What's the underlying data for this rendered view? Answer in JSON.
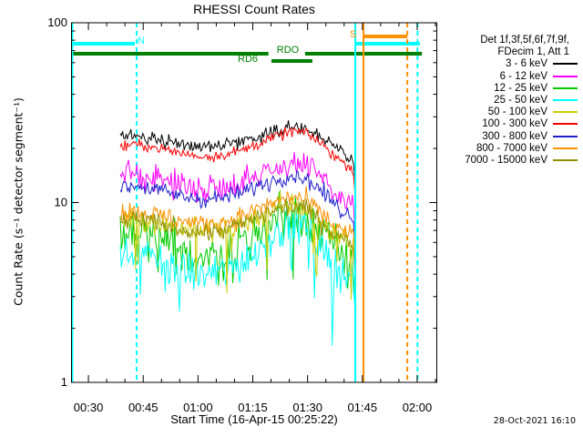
{
  "window": {
    "timestamp": "28-Oct-2021 16:10"
  },
  "chart_data": {
    "type": "line",
    "title": "RHESSI Count Rates",
    "xlabel": "Start Time (16-Apr-15 00:25:22)",
    "ylabel": "Count Rate (s⁻¹ detector segment⁻¹)",
    "y_log": true,
    "y_range": [
      1,
      100
    ],
    "y_major_ticks": [
      "1",
      "10",
      "100"
    ],
    "x_range_minutes": [
      25.37,
      125.37
    ],
    "x_minor_step_minutes": 5,
    "x_major_ticks": [
      {
        "minute": 30,
        "label": "00:30"
      },
      {
        "minute": 45,
        "label": "00:45"
      },
      {
        "minute": 60,
        "label": "01:00"
      },
      {
        "minute": 75,
        "label": "01:15"
      },
      {
        "minute": 90,
        "label": "01:30"
      },
      {
        "minute": 105,
        "label": "01:45"
      },
      {
        "minute": 120,
        "label": "02:00"
      }
    ],
    "series": [
      {
        "name": "3 - 6 keV",
        "color": "#000000",
        "noise_dex": 0.035,
        "spiky": false,
        "t": [
          38.7,
          43,
          47,
          52,
          57,
          62,
          67,
          72,
          77,
          82,
          86,
          89,
          93,
          97,
          100,
          102.5,
          103.3
        ],
        "v": [
          23,
          23.5,
          23,
          22,
          21,
          20.5,
          21,
          22,
          23.5,
          25.5,
          26.5,
          26,
          23.5,
          20.5,
          18.5,
          17.5,
          9
        ]
      },
      {
        "name": "6 - 12 keV",
        "color": "#FF00FF",
        "noise_dex": 0.075,
        "spiky": false,
        "t": [
          38.7,
          43,
          47,
          52,
          57,
          62,
          67,
          72,
          77,
          82,
          86,
          89,
          93,
          97,
          100,
          102.5,
          103.3
        ],
        "v": [
          14,
          14.5,
          14,
          13,
          12.3,
          12,
          12.3,
          13.2,
          14.5,
          15.8,
          16.5,
          16,
          14,
          11.5,
          10.3,
          10,
          5
        ]
      },
      {
        "name": "12 - 25 keV",
        "color": "#00CC00",
        "noise_dex": 0.14,
        "spiky": true,
        "t": [
          38.7,
          43,
          47,
          52,
          57,
          62,
          67,
          72,
          77,
          82,
          86,
          89,
          93,
          97,
          100,
          102.5,
          103.3
        ],
        "v": [
          6.3,
          6.5,
          6.2,
          5.6,
          5.2,
          5,
          5.2,
          5.9,
          7,
          8.2,
          8.8,
          8.5,
          7,
          5.6,
          5.1,
          4.9,
          2.6
        ]
      },
      {
        "name": "25 - 50 keV",
        "color": "#00FFFF",
        "noise_dex": 0.11,
        "spiky": true,
        "t": [
          38.7,
          43,
          47,
          52,
          57,
          62,
          67,
          72,
          77,
          82,
          86,
          89,
          93,
          97,
          100,
          102.5,
          103.3
        ],
        "v": [
          5,
          5.2,
          5,
          4.5,
          4.1,
          3.9,
          4.1,
          4.7,
          5.7,
          7,
          7.6,
          7.3,
          5.9,
          4.5,
          4.1,
          3.9,
          2.1
        ]
      },
      {
        "name": "50 - 100 keV",
        "color": "#CCCC00",
        "noise_dex": 0.07,
        "spiky": true,
        "t": [
          38.7,
          43,
          47,
          52,
          57,
          62,
          67,
          72,
          77,
          82,
          86,
          89,
          93,
          97,
          100,
          102.5,
          103.3
        ],
        "v": [
          8,
          8.3,
          8,
          7.5,
          7.1,
          6.9,
          7.1,
          7.7,
          8.5,
          9.3,
          9.7,
          9.4,
          8.2,
          6.8,
          6.3,
          6.1,
          3.2
        ]
      },
      {
        "name": "100 - 300 keV",
        "color": "#FF0000",
        "noise_dex": 0.03,
        "spiky": false,
        "t": [
          38.7,
          43,
          47,
          52,
          57,
          62,
          67,
          72,
          77,
          82,
          86,
          89,
          93,
          97,
          100,
          102.5,
          103.3
        ],
        "v": [
          20.5,
          21,
          20.5,
          19.5,
          18.5,
          18,
          18.5,
          19.5,
          21.5,
          23.5,
          25,
          24.5,
          22,
          18.5,
          16.5,
          15.5,
          8
        ]
      },
      {
        "name": "300 - 800 keV",
        "color": "#2020CC",
        "noise_dex": 0.045,
        "spiky": false,
        "t": [
          38.7,
          43,
          47,
          52,
          57,
          62,
          67,
          72,
          77,
          82,
          86,
          89,
          93,
          97,
          100,
          102.5,
          103.3
        ],
        "v": [
          12,
          12.5,
          12,
          11.3,
          10.7,
          10.4,
          10.7,
          11.4,
          12.5,
          13.6,
          14.2,
          13.8,
          12,
          10,
          8.8,
          8.4,
          4.5
        ]
      },
      {
        "name": "800 - 7000 keV",
        "color": "#FF9000",
        "noise_dex": 0.055,
        "spiky": false,
        "t": [
          38.7,
          43,
          47,
          52,
          57,
          62,
          67,
          72,
          77,
          82,
          86,
          89,
          93,
          97,
          100,
          102.5,
          103.3
        ],
        "v": [
          8.7,
          9,
          8.7,
          8.2,
          7.8,
          7.6,
          7.8,
          8.4,
          9.3,
          10.2,
          10.7,
          10.4,
          9,
          7.5,
          6.9,
          6.6,
          3.5
        ]
      },
      {
        "name": "7000 - 15000 keV",
        "color": "#8F8F00",
        "noise_dex": 0.05,
        "spiky": false,
        "t": [
          38.7,
          43,
          47,
          52,
          57,
          62,
          67,
          72,
          77,
          82,
          86,
          89,
          93,
          97,
          100,
          102.5,
          103.3
        ],
        "v": [
          7.8,
          8.1,
          7.8,
          7.4,
          7,
          6.8,
          7,
          7.6,
          8.4,
          9.2,
          9.6,
          9.4,
          8.1,
          6.8,
          6.2,
          5.9,
          3.1
        ]
      }
    ]
  },
  "legend": {
    "header_line1": "Det 1f,3f,5f,6f,7f,9f,",
    "header_line2": "FDecim 1, Att 1",
    "items": [
      {
        "label": "3 - 6 keV",
        "color": "#000000"
      },
      {
        "label": "6 - 12 keV",
        "color": "#FF00FF"
      },
      {
        "label": "12 - 25 keV",
        "color": "#00CC00"
      },
      {
        "label": "25 - 50 keV",
        "color": "#00FFFF"
      },
      {
        "label": "50 - 100 keV",
        "color": "#CCCC00"
      },
      {
        "label": "100 - 300 keV",
        "color": "#FF0000"
      },
      {
        "label": "300 - 800 keV",
        "color": "#2020CC"
      },
      {
        "label": "800 - 7000 keV",
        "color": "#FF9000"
      },
      {
        "label": "7000 - 15000 keV",
        "color": "#8F8F00"
      }
    ]
  },
  "flags": {
    "night": {
      "label": "N",
      "color": "#00FFFF",
      "bars_minutes": [
        [
          25.37,
          42.7
        ],
        [
          103.05,
          120.75
        ]
      ],
      "solid_lines_minutes": [
        25.6,
        103.05
      ],
      "dashed_lines_minutes": [
        43.2,
        120.1
      ]
    },
    "saa": {
      "label": "S",
      "color": "#FF9000",
      "bars_minutes": [
        [
          105.3,
          117.3
        ]
      ],
      "solid_lines_minutes": [
        105.3
      ],
      "dashed_lines_minutes": [
        117.3
      ]
    },
    "decim": {
      "color": "#008000",
      "rdo_label": "RDO",
      "rdo_segments_minutes": [
        [
          25.37,
          79.3
        ],
        [
          89.3,
          121.3
        ]
      ],
      "rd6_label": "RD6",
      "rd6_segments_minutes": [
        [
          80.1,
          91.3
        ]
      ]
    }
  }
}
